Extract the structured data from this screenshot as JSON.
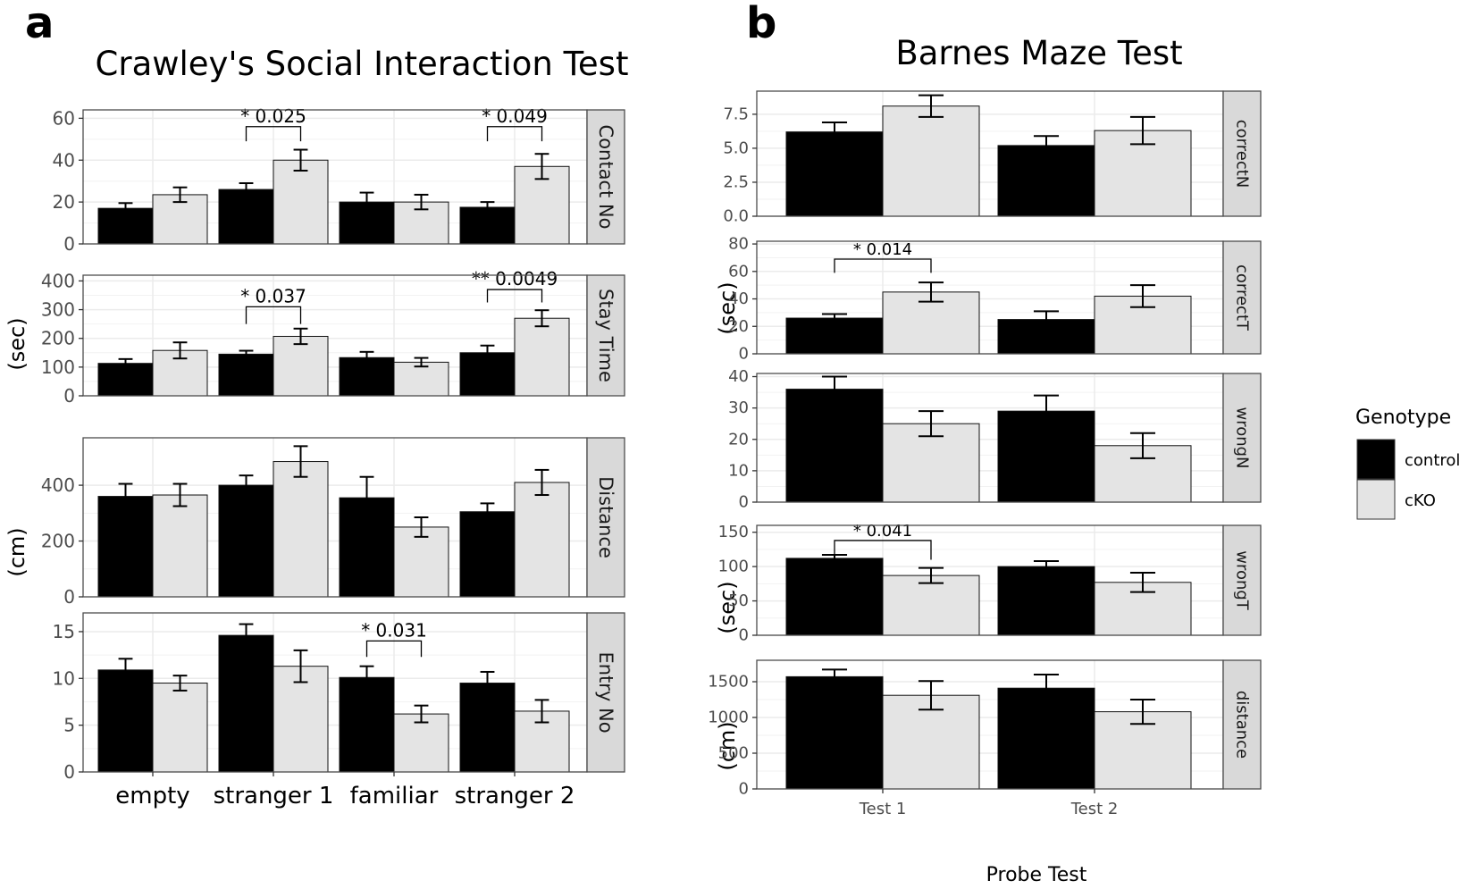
{
  "panel_letters": {
    "a": "a",
    "b": "b"
  },
  "titles": {
    "a": "Crawley's Social Interaction Test",
    "b": "Barnes Maze Test"
  },
  "y_axis_units": {
    "a_top": "(sec)",
    "a_distance": "(cm)",
    "b_correctT": "(sec)",
    "b_wrongT": "(sec)",
    "b_distance": "(cm)"
  },
  "x_axis_title_b": "Probe Test",
  "legend": {
    "title": "Genotype",
    "items": [
      "control",
      "cKO"
    ]
  },
  "colors": {
    "control": "#000000",
    "cKO": "#e4e4e4",
    "strip": "#d9d9d9",
    "grid": "#ebebeb",
    "panel_border": "#4d4d4d"
  },
  "chart_data": [
    {
      "type": "bar",
      "panel": "a",
      "facet": "Contact No",
      "categories": [
        "empty",
        "stranger 1",
        "familiar",
        "stranger 2"
      ],
      "series": [
        {
          "name": "control",
          "values": [
            17,
            26,
            20,
            17.5
          ],
          "err": [
            2.5,
            3,
            4.5,
            2.5
          ]
        },
        {
          "name": "cKO",
          "values": [
            23.5,
            40,
            20,
            37
          ],
          "err": [
            3.5,
            5,
            3.5,
            6
          ]
        }
      ],
      "ylim": [
        0,
        64
      ],
      "yticks": [
        0,
        20,
        40,
        60
      ],
      "annotations": [
        {
          "text": "* 0.025",
          "category": 1,
          "level": 56,
          "drop": 7
        },
        {
          "text": "* 0.049",
          "category": 3,
          "level": 56,
          "drop": 7
        }
      ]
    },
    {
      "type": "bar",
      "panel": "a",
      "facet": "Stay Time",
      "categories": [
        "empty",
        "stranger 1",
        "familiar",
        "stranger 2"
      ],
      "series": [
        {
          "name": "control",
          "values": [
            113,
            145,
            133,
            150
          ],
          "err": [
            15,
            12,
            20,
            25
          ]
        },
        {
          "name": "cKO",
          "values": [
            158,
            207,
            117,
            270
          ],
          "err": [
            28,
            27,
            15,
            28
          ]
        }
      ],
      "ylim": [
        0,
        420
      ],
      "yticks": [
        0,
        100,
        200,
        300,
        400
      ],
      "annotations": [
        {
          "text": "* 0.037",
          "category": 1,
          "level": 310,
          "drop": 60
        },
        {
          "text": "** 0.0049",
          "category": 3,
          "level": 370,
          "drop": 45
        }
      ]
    },
    {
      "type": "bar",
      "panel": "a",
      "facet": "Distance",
      "categories": [
        "empty",
        "stranger 1",
        "familiar",
        "stranger 2"
      ],
      "series": [
        {
          "name": "control",
          "values": [
            360,
            400,
            355,
            305
          ],
          "err": [
            45,
            35,
            75,
            30
          ]
        },
        {
          "name": "cKO",
          "values": [
            365,
            485,
            250,
            410
          ],
          "err": [
            40,
            55,
            35,
            45
          ]
        }
      ],
      "ylim": [
        0,
        570
      ],
      "yticks": [
        0,
        200,
        400
      ],
      "annotations": []
    },
    {
      "type": "bar",
      "panel": "a",
      "facet": "Entry No",
      "categories": [
        "empty",
        "stranger 1",
        "familiar",
        "stranger 2"
      ],
      "series": [
        {
          "name": "control",
          "values": [
            10.9,
            14.6,
            10.1,
            9.5
          ],
          "err": [
            1.2,
            1.2,
            1.2,
            1.2
          ]
        },
        {
          "name": "cKO",
          "values": [
            9.5,
            11.3,
            6.2,
            6.5
          ],
          "err": [
            0.8,
            1.7,
            0.9,
            1.2
          ]
        }
      ],
      "ylim": [
        0,
        17
      ],
      "yticks": [
        0,
        5,
        10,
        15
      ],
      "annotations": [
        {
          "text": "* 0.031",
          "category": 2,
          "level": 14,
          "drop": 1.7
        }
      ]
    },
    {
      "type": "bar",
      "panel": "b",
      "facet": "correctN",
      "categories": [
        "Test 1",
        "Test 2"
      ],
      "series": [
        {
          "name": "control",
          "values": [
            6.2,
            5.2
          ],
          "err": [
            0.7,
            0.7
          ]
        },
        {
          "name": "cKO",
          "values": [
            8.1,
            6.3
          ],
          "err": [
            0.8,
            1
          ]
        }
      ],
      "ylim": [
        0,
        9.2
      ],
      "yticks": [
        0,
        2.5,
        5,
        7.5
      ],
      "yticklabels": [
        "0.0",
        "2.5",
        "5.0",
        "7.5"
      ],
      "annotations": []
    },
    {
      "type": "bar",
      "panel": "b",
      "facet": "correctT",
      "categories": [
        "Test 1",
        "Test 2"
      ],
      "series": [
        {
          "name": "control",
          "values": [
            26,
            25
          ],
          "err": [
            3,
            6
          ]
        },
        {
          "name": "cKO",
          "values": [
            45,
            42
          ],
          "err": [
            7,
            8
          ]
        }
      ],
      "ylim": [
        0,
        82
      ],
      "yticks": [
        0,
        20,
        40,
        60,
        80
      ],
      "annotations": [
        {
          "text": "* 0.014",
          "category": 0,
          "level": 69,
          "drop": 10
        }
      ]
    },
    {
      "type": "bar",
      "panel": "b",
      "facet": "wrongN",
      "categories": [
        "Test 1",
        "Test 2"
      ],
      "series": [
        {
          "name": "control",
          "values": [
            36,
            29
          ],
          "err": [
            4,
            5
          ]
        },
        {
          "name": "cKO",
          "values": [
            25,
            18
          ],
          "err": [
            4,
            4
          ]
        }
      ],
      "ylim": [
        0,
        41
      ],
      "yticks": [
        0,
        10,
        20,
        30,
        40
      ],
      "annotations": []
    },
    {
      "type": "bar",
      "panel": "b",
      "facet": "wrongT",
      "categories": [
        "Test 1",
        "Test 2"
      ],
      "series": [
        {
          "name": "control",
          "values": [
            112,
            100
          ],
          "err": [
            5,
            8
          ]
        },
        {
          "name": "cKO",
          "values": [
            87,
            77
          ],
          "err": [
            11,
            14
          ]
        }
      ],
      "ylim": [
        0,
        160
      ],
      "yticks": [
        0,
        50,
        100,
        150
      ],
      "annotations": [
        {
          "text": "* 0.041",
          "category": 0,
          "level": 138,
          "drop": 28
        }
      ]
    },
    {
      "type": "bar",
      "panel": "b",
      "facet": "distance",
      "categories": [
        "Test 1",
        "Test 2"
      ],
      "series": [
        {
          "name": "control",
          "values": [
            1570,
            1410
          ],
          "err": [
            100,
            190
          ]
        },
        {
          "name": "cKO",
          "values": [
            1310,
            1080
          ],
          "err": [
            200,
            170
          ]
        }
      ],
      "ylim": [
        0,
        1800
      ],
      "yticks": [
        0,
        500,
        1000,
        1500
      ],
      "annotations": []
    }
  ]
}
